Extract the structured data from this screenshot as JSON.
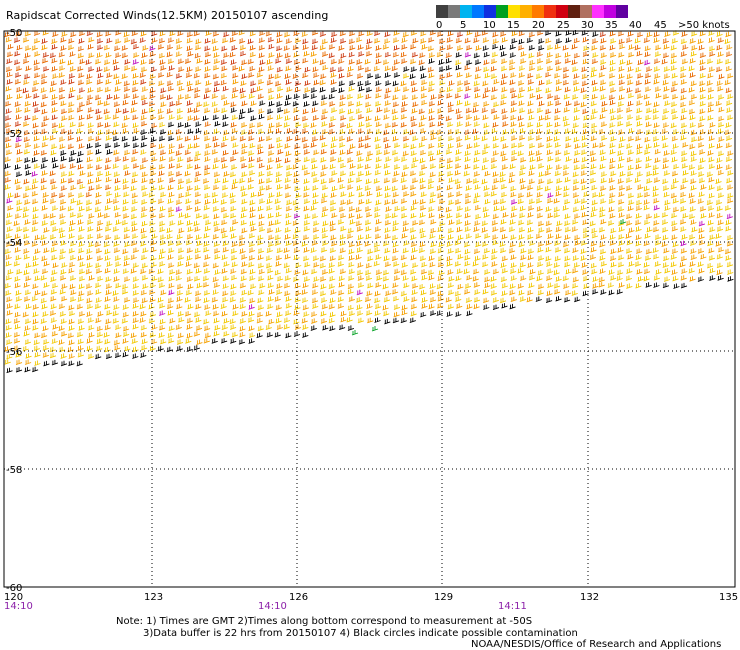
{
  "title": "Rapidscat Corrected Winds(12.5KM) 20150107 ascending",
  "legend": {
    "labels": [
      "0",
      "5",
      "10",
      "15",
      "20",
      "25",
      "30",
      "35",
      "40",
      "45",
      ">50 knots"
    ],
    "colors": [
      "#404040",
      "#7a7a7a",
      "#00b4f0",
      "#0078ff",
      "#1030e0",
      "#00a020",
      "#ffe000",
      "#ffb000",
      "#ff7a00",
      "#f03010",
      "#d00010",
      "#602010",
      "#b07060",
      "#ff30ff",
      "#c000e0",
      "#6000a0"
    ]
  },
  "axes": {
    "lat_labels": [
      "-50",
      "-52",
      "-54",
      "-56",
      "-58",
      "-60"
    ],
    "lon_labels": [
      "120",
      "123",
      "126",
      "129",
      "132",
      "135"
    ],
    "time_labels": [
      "14:10",
      "14:10",
      "14:11"
    ]
  },
  "notes": {
    "line1": "Note: 1) Times are GMT 2)Times along bottom correspond to measurement at -50S",
    "line2": "3)Data buffer is 22 hrs from 20150107 4) Black circles indicate possible contamination",
    "credit": "NOAA/NESDIS/Office of Research and Applications"
  },
  "wind_colors": {
    "black": "#000000",
    "yellow": "#f2c800",
    "light_orange": "#f5a000",
    "orange": "#e86a00",
    "red_orange": "#cc3a10",
    "magenta": "#c010c0",
    "green": "#00a020"
  }
}
